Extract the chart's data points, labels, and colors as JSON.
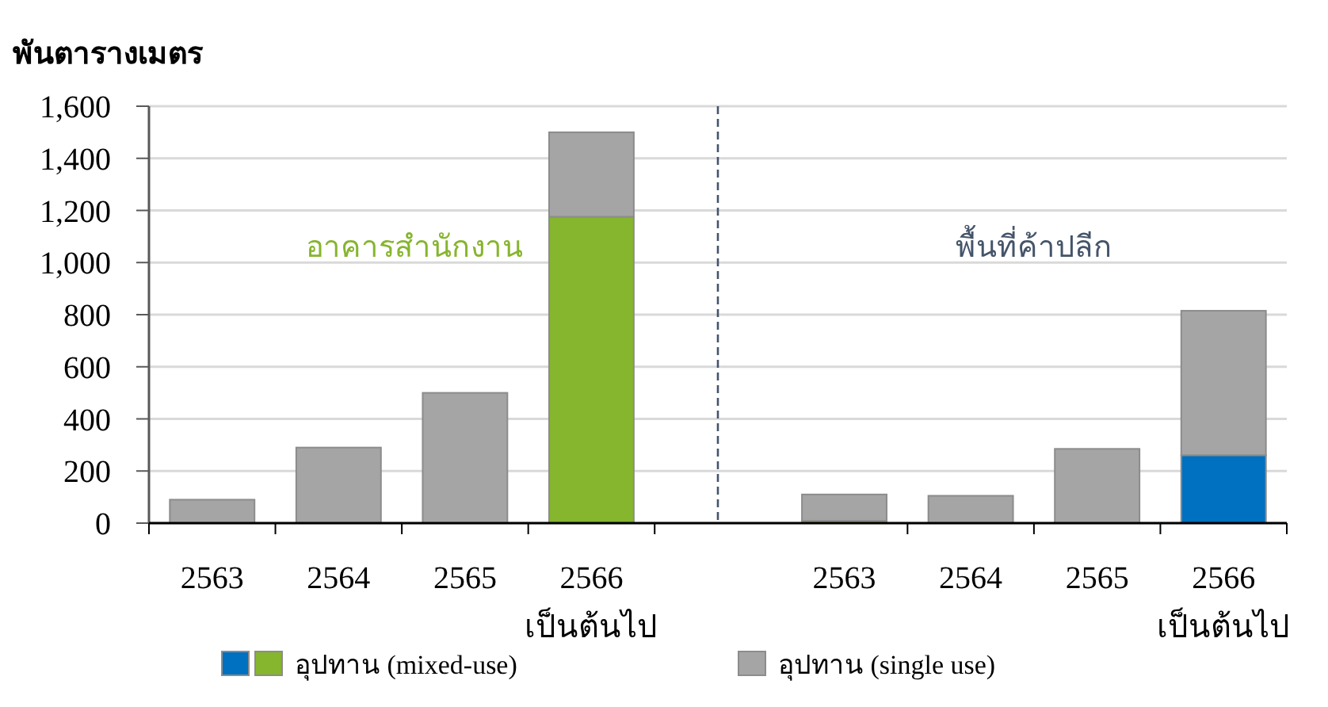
{
  "chart_data": {
    "type": "bar",
    "stacked": true,
    "ylabel": "พันตารางเมตร",
    "categories": [
      "2563",
      "2564",
      "2565",
      "2566\nเป็นต้นไป",
      null,
      "2563",
      "2564",
      "2565",
      "2566\nเป็นต้นไป"
    ],
    "series": [
      {
        "name": "อุปทาน (mixed-use)",
        "colors": [
          null,
          null,
          null,
          "#86b52e",
          null,
          "#86b52e",
          null,
          null,
          "#0070c0"
        ],
        "values": [
          null,
          null,
          null,
          1175,
          null,
          8,
          null,
          null,
          260
        ]
      },
      {
        "name": "อุปทาน (single use)",
        "color": "#a5a5a5",
        "values": [
          90,
          290,
          500,
          325,
          null,
          102,
          105,
          285,
          555
        ]
      }
    ],
    "ylim": [
      0,
      1600
    ],
    "yticks": [
      0,
      200,
      400,
      600,
      800,
      {
        "value": 1000,
        "label": "1,000"
      },
      {
        "value": 1200,
        "label": "1,200"
      },
      {
        "value": 1400,
        "label": "1,400"
      },
      {
        "value": 1600,
        "label": "1,600"
      }
    ],
    "grid": "y",
    "legend": "bottom",
    "annotations": [
      "อาคารสำนักงาน",
      "พื้นที่ค้าปลีก"
    ]
  }
}
